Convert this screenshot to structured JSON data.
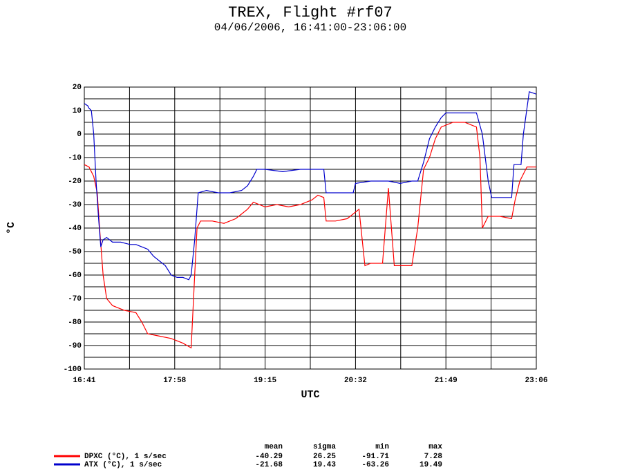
{
  "chart_data": {
    "type": "line",
    "title": "TREX, Flight #rf07",
    "subtitle": "04/06/2006, 16:41:00-23:06:00",
    "xlabel": "UTC",
    "ylabel": "°C",
    "xlim": [
      "16:41",
      "23:06"
    ],
    "xticks": [
      "16:41",
      "17:58",
      "19:15",
      "20:32",
      "21:49",
      "23:06"
    ],
    "minor_xticks": [
      "17:19:30",
      "18:36:30",
      "19:53:30",
      "21:10:30",
      "22:27:30"
    ],
    "ylim": [
      -100,
      20
    ],
    "yticks": [
      20,
      10,
      0,
      -10,
      -20,
      -30,
      -40,
      -50,
      -60,
      -70,
      -80,
      -90,
      -100
    ],
    "minor_yticks": [
      15,
      5,
      -5,
      -15,
      -25,
      -35,
      -45,
      -55,
      -65,
      -75,
      -85,
      -95
    ],
    "grid": true,
    "stats_columns": [
      "mean",
      "sigma",
      "min",
      "max"
    ],
    "series": [
      {
        "name": "DPXC (°C), 1 s/sec",
        "color": "#ff0000",
        "mean": -40.29,
        "sigma": 26.25,
        "min": -91.71,
        "max": 7.28,
        "x": [
          "16:41",
          "16:45",
          "16:49",
          "16:52",
          "16:54",
          "16:57",
          "17:00",
          "17:05",
          "17:15",
          "17:25",
          "17:30",
          "17:35",
          "17:45",
          "17:55",
          "18:05",
          "18:12",
          "18:15",
          "18:17",
          "18:20",
          "18:30",
          "18:40",
          "18:50",
          "18:55",
          "19:00",
          "19:05",
          "19:15",
          "19:25",
          "19:35",
          "19:45",
          "19:55",
          "20:00",
          "20:05",
          "20:07",
          "20:15",
          "20:25",
          "20:30",
          "20:35",
          "20:40",
          "20:45",
          "20:55",
          "21:00",
          "21:05",
          "21:15",
          "21:20",
          "21:25",
          "21:30",
          "21:35",
          "21:40",
          "21:45",
          "21:55",
          "22:05",
          "22:15",
          "22:18",
          "22:20",
          "22:25",
          "22:35",
          "22:45",
          "22:48",
          "22:52",
          "22:58",
          "23:06"
        ],
        "values": [
          -13,
          -14,
          -18,
          -25,
          -40,
          -60,
          -70,
          -73,
          -75,
          -76,
          -80,
          -85,
          -86,
          -87,
          -89,
          -91,
          -60,
          -40,
          -37,
          -37,
          -38,
          -36,
          -34,
          -32,
          -29,
          -31,
          -30,
          -31,
          -30,
          -28,
          -26,
          -27,
          -37,
          -37,
          -36,
          -34,
          -32,
          -56,
          -55,
          -55,
          -23,
          -56,
          -56,
          -56,
          -40,
          -15,
          -10,
          -2,
          3,
          5,
          5,
          3,
          -10,
          -40,
          -35,
          -35,
          -36,
          -28,
          -20,
          -14,
          -14
        ]
      },
      {
        "name": "ATX (°C), 1 s/sec",
        "color": "#0000cc",
        "mean": -21.68,
        "sigma": 19.43,
        "min": -63.26,
        "max": 19.49,
        "x": [
          "16:41",
          "16:44",
          "16:45",
          "16:47",
          "16:49",
          "16:51",
          "16:53",
          "16:55",
          "16:57",
          "17:00",
          "17:05",
          "17:12",
          "17:20",
          "17:25",
          "17:30",
          "17:35",
          "17:40",
          "17:45",
          "17:50",
          "17:55",
          "18:00",
          "18:05",
          "18:10",
          "18:12",
          "18:15",
          "18:18",
          "18:25",
          "18:35",
          "18:45",
          "18:55",
          "19:00",
          "19:05",
          "19:08",
          "19:15",
          "19:30",
          "19:45",
          "20:00",
          "20:05",
          "20:07",
          "20:15",
          "20:30",
          "20:32",
          "20:45",
          "21:00",
          "21:10",
          "21:20",
          "21:25",
          "21:30",
          "21:35",
          "21:40",
          "21:45",
          "21:49",
          "22:05",
          "22:15",
          "22:20",
          "22:25",
          "22:28",
          "22:35",
          "22:45",
          "22:47",
          "22:53",
          "22:55",
          "23:00",
          "23:06"
        ],
        "values": [
          13,
          12,
          11,
          10,
          0,
          -20,
          -35,
          -48,
          -45,
          -44,
          -46,
          -46,
          -47,
          -47,
          -48,
          -49,
          -52,
          -54,
          -56,
          -60,
          -61,
          -61,
          -62,
          -60,
          -45,
          -25,
          -24,
          -25,
          -25,
          -24,
          -22,
          -18,
          -15,
          -15,
          -16,
          -15,
          -15,
          -15,
          -25,
          -25,
          -25,
          -21,
          -20,
          -20,
          -21,
          -20,
          -20,
          -12,
          -2,
          3,
          7,
          9,
          9,
          9,
          0,
          -20,
          -27,
          -27,
          -27,
          -13,
          -13,
          0,
          18,
          17
        ]
      }
    ]
  }
}
